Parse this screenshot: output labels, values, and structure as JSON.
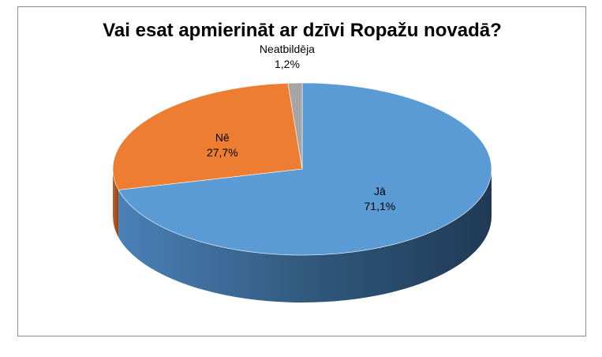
{
  "chart_data": {
    "type": "pie",
    "title": "Vai esat apmierināt ar dzīvi Ropažu novadā?",
    "categories": [
      "Jā",
      "Nē",
      "Neatbildēja"
    ],
    "values": [
      71.1,
      27.7,
      1.2
    ],
    "value_labels": [
      "71,1%",
      "27,7%",
      "1,2%"
    ],
    "unit": "%",
    "colors": [
      "#5B9BD5",
      "#ED7D31",
      "#A5A5A5"
    ],
    "style": "3d-pie",
    "legend": "none"
  }
}
